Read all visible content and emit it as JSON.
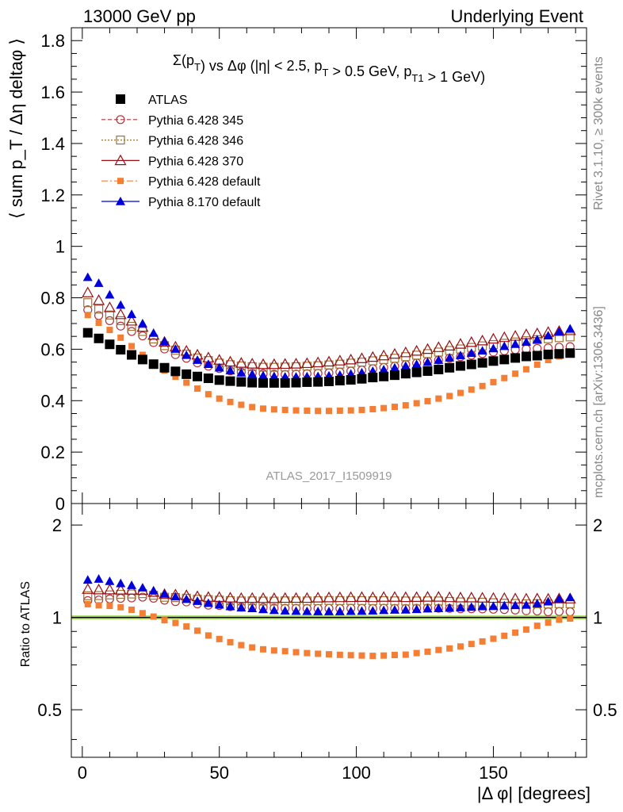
{
  "header": {
    "left": "13000 GeV pp",
    "right": "Underlying Event"
  },
  "side_labels": {
    "rivet": "Rivet 3.1.10, ≥ 300k events",
    "mcplots": "mcplots.cern.ch [arXiv:1306.3436]"
  },
  "colors": {
    "atlas": "#000000",
    "p345": "#b5303b",
    "p346": "#9b7437",
    "p370": "#9a0e15",
    "pdef": "#f57e35",
    "p8": "#0000dd",
    "band_stat": "#ffff66",
    "band_syst": "#aadd66"
  },
  "chart_data": [
    {
      "type": "scatter",
      "title": "Σ(p_T) vs Δφ (|η| < 2.5, p_T > 0.5 GeV, p_T1 > 1 GeV)",
      "ylabel": "⟨ sum p_T / Δη deltaφ ⟩",
      "xlabel": "",
      "ylim": [
        0,
        1.85
      ],
      "xlim": [
        -4,
        184
      ],
      "yticks": [
        0,
        0.2,
        0.4,
        0.6,
        0.8,
        1,
        1.2,
        1.4,
        1.6,
        1.8
      ],
      "yticklabels": [
        "0",
        "0.2",
        "0.4",
        "0.6",
        "0.8",
        "1",
        "1.2",
        "1.4",
        "1.6",
        "1.8"
      ],
      "legend_position": "top-left",
      "watermark": "ATLAS_2017_I1509919",
      "x": [
        2,
        6,
        10,
        14,
        18,
        22,
        26,
        30,
        34,
        38,
        42,
        46,
        50,
        54,
        58,
        62,
        66,
        70,
        74,
        78,
        82,
        86,
        90,
        94,
        98,
        102,
        106,
        110,
        114,
        118,
        122,
        126,
        130,
        134,
        138,
        142,
        146,
        150,
        154,
        158,
        162,
        166,
        170,
        174,
        178
      ],
      "series": [
        {
          "name": "ATLAS",
          "key": "atlas",
          "marker": "square",
          "line": "none",
          "values": [
            0.664,
            0.642,
            0.619,
            0.598,
            0.578,
            0.56,
            0.542,
            0.528,
            0.514,
            0.503,
            0.494,
            0.487,
            0.48,
            0.476,
            0.473,
            0.47,
            0.469,
            0.469,
            0.469,
            0.47,
            0.472,
            0.473,
            0.475,
            0.478,
            0.481,
            0.485,
            0.49,
            0.494,
            0.499,
            0.505,
            0.51,
            0.515,
            0.521,
            0.528,
            0.535,
            0.541,
            0.547,
            0.554,
            0.56,
            0.566,
            0.572,
            0.575,
            0.58,
            0.582,
            0.585
          ]
        },
        {
          "name": "Pythia 6.428 345",
          "key": "p345",
          "marker": "circle-open",
          "line": "dashed",
          "values": [
            0.753,
            0.731,
            0.711,
            0.69,
            0.669,
            0.652,
            0.626,
            0.601,
            0.579,
            0.565,
            0.547,
            0.534,
            0.525,
            0.516,
            0.511,
            0.507,
            0.505,
            0.503,
            0.502,
            0.503,
            0.505,
            0.506,
            0.508,
            0.511,
            0.515,
            0.519,
            0.524,
            0.529,
            0.534,
            0.54,
            0.546,
            0.552,
            0.558,
            0.565,
            0.571,
            0.577,
            0.583,
            0.589,
            0.594,
            0.598,
            0.601,
            0.603,
            0.605,
            0.608,
            0.61
          ]
        },
        {
          "name": "Pythia 6.428 346",
          "key": "p346",
          "marker": "square-open",
          "line": "dotted",
          "values": [
            0.781,
            0.756,
            0.733,
            0.711,
            0.689,
            0.669,
            0.64,
            0.614,
            0.596,
            0.581,
            0.566,
            0.556,
            0.546,
            0.54,
            0.535,
            0.532,
            0.53,
            0.53,
            0.531,
            0.532,
            0.534,
            0.536,
            0.539,
            0.542,
            0.546,
            0.55,
            0.555,
            0.56,
            0.565,
            0.571,
            0.577,
            0.583,
            0.589,
            0.595,
            0.601,
            0.607,
            0.613,
            0.618,
            0.623,
            0.628,
            0.633,
            0.637,
            0.641,
            0.645,
            0.648
          ]
        },
        {
          "name": "Pythia 6.428 370",
          "key": "p370",
          "marker": "triangle-open",
          "line": "solid",
          "values": [
            0.82,
            0.79,
            0.762,
            0.735,
            0.71,
            0.686,
            0.655,
            0.628,
            0.609,
            0.593,
            0.578,
            0.567,
            0.558,
            0.551,
            0.546,
            0.543,
            0.541,
            0.541,
            0.542,
            0.543,
            0.545,
            0.548,
            0.551,
            0.555,
            0.559,
            0.564,
            0.569,
            0.575,
            0.581,
            0.587,
            0.593,
            0.6,
            0.607,
            0.613,
            0.62,
            0.627,
            0.633,
            0.64,
            0.646,
            0.651,
            0.657,
            0.661,
            0.666,
            0.67,
            0.673
          ]
        },
        {
          "name": "Pythia 6.428 default",
          "key": "pdef",
          "marker": "square-small",
          "line": "dashdot",
          "values": [
            0.733,
            0.703,
            0.675,
            0.645,
            0.612,
            0.578,
            0.545,
            0.517,
            0.493,
            0.47,
            0.447,
            0.425,
            0.408,
            0.395,
            0.384,
            0.375,
            0.369,
            0.366,
            0.364,
            0.362,
            0.361,
            0.36,
            0.36,
            0.361,
            0.362,
            0.364,
            0.367,
            0.371,
            0.376,
            0.382,
            0.39,
            0.398,
            0.408,
            0.418,
            0.43,
            0.443,
            0.457,
            0.472,
            0.488,
            0.505,
            0.522,
            0.54,
            0.558,
            0.572,
            0.58
          ]
        },
        {
          "name": "Pythia 8.170 default",
          "key": "p8",
          "marker": "triangle",
          "line": "solid",
          "values": [
            0.88,
            0.857,
            0.812,
            0.772,
            0.736,
            0.7,
            0.663,
            0.63,
            0.601,
            0.577,
            0.558,
            0.542,
            0.528,
            0.517,
            0.509,
            0.503,
            0.498,
            0.495,
            0.493,
            0.493,
            0.494,
            0.495,
            0.497,
            0.5,
            0.504,
            0.509,
            0.515,
            0.521,
            0.528,
            0.535,
            0.542,
            0.55,
            0.558,
            0.567,
            0.576,
            0.585,
            0.594,
            0.603,
            0.612,
            0.62,
            0.628,
            0.638,
            0.653,
            0.668,
            0.68
          ]
        }
      ]
    },
    {
      "type": "scatter",
      "title": "",
      "ylabel": "Ratio to ATLAS",
      "xlabel": "|Δ φ| [degrees]",
      "ylim": [
        0.35,
        2.35
      ],
      "yscale": "log",
      "xlim": [
        -4,
        184
      ],
      "xticks": [
        0,
        50,
        100,
        150
      ],
      "xticklabels": [
        "0",
        "50",
        "100",
        "150"
      ],
      "yticks": [
        0.5,
        1,
        2
      ],
      "yticklabels": [
        "0.5",
        "1",
        "2"
      ],
      "reference_line": 1,
      "x": [
        2,
        6,
        10,
        14,
        18,
        22,
        26,
        30,
        34,
        38,
        42,
        46,
        50,
        54,
        58,
        62,
        66,
        70,
        74,
        78,
        82,
        86,
        90,
        94,
        98,
        102,
        106,
        110,
        114,
        118,
        122,
        126,
        130,
        134,
        138,
        142,
        146,
        150,
        154,
        158,
        162,
        166,
        170,
        174,
        178
      ],
      "series": [
        {
          "name": "Pythia 6.428 345",
          "key": "p345",
          "marker": "circle-open",
          "line": "dashed",
          "values": [
            1.134,
            1.139,
            1.149,
            1.154,
            1.157,
            1.164,
            1.155,
            1.138,
            1.126,
            1.123,
            1.107,
            1.096,
            1.094,
            1.084,
            1.08,
            1.079,
            1.077,
            1.072,
            1.071,
            1.071,
            1.07,
            1.07,
            1.07,
            1.069,
            1.071,
            1.07,
            1.069,
            1.071,
            1.07,
            1.069,
            1.071,
            1.072,
            1.071,
            1.07,
            1.067,
            1.067,
            1.066,
            1.063,
            1.061,
            1.057,
            1.051,
            1.049,
            1.043,
            1.045,
            1.043
          ]
        },
        {
          "name": "Pythia 6.428 346",
          "key": "p346",
          "marker": "square-open",
          "line": "dotted",
          "values": [
            1.176,
            1.178,
            1.184,
            1.189,
            1.192,
            1.195,
            1.181,
            1.163,
            1.16,
            1.155,
            1.146,
            1.142,
            1.138,
            1.134,
            1.131,
            1.132,
            1.13,
            1.13,
            1.132,
            1.132,
            1.131,
            1.133,
            1.135,
            1.134,
            1.135,
            1.134,
            1.133,
            1.134,
            1.132,
            1.131,
            1.131,
            1.132,
            1.131,
            1.127,
            1.123,
            1.122,
            1.121,
            1.116,
            1.112,
            1.11,
            1.107,
            1.108,
            1.105,
            1.108,
            1.108
          ]
        },
        {
          "name": "Pythia 6.428 370",
          "key": "p370",
          "marker": "triangle-open",
          "line": "solid",
          "values": [
            1.235,
            1.231,
            1.231,
            1.229,
            1.228,
            1.225,
            1.208,
            1.189,
            1.185,
            1.179,
            1.17,
            1.164,
            1.163,
            1.158,
            1.154,
            1.155,
            1.154,
            1.153,
            1.155,
            1.155,
            1.155,
            1.158,
            1.16,
            1.161,
            1.162,
            1.163,
            1.161,
            1.164,
            1.164,
            1.162,
            1.163,
            1.165,
            1.165,
            1.161,
            1.159,
            1.159,
            1.157,
            1.155,
            1.154,
            1.15,
            1.149,
            1.15,
            1.148,
            1.151,
            1.15
          ]
        },
        {
          "name": "Pythia 6.428 default",
          "key": "pdef",
          "marker": "square-small",
          "line": "dashdot",
          "values": [
            1.104,
            1.095,
            1.09,
            1.079,
            1.059,
            1.032,
            1.006,
            0.979,
            0.959,
            0.934,
            0.905,
            0.873,
            0.85,
            0.83,
            0.812,
            0.798,
            0.787,
            0.78,
            0.776,
            0.77,
            0.765,
            0.761,
            0.758,
            0.755,
            0.753,
            0.751,
            0.749,
            0.751,
            0.754,
            0.756,
            0.765,
            0.773,
            0.783,
            0.792,
            0.804,
            0.819,
            0.835,
            0.852,
            0.871,
            0.892,
            0.913,
            0.939,
            0.962,
            0.983,
            0.991
          ]
        },
        {
          "name": "Pythia 8.170 default",
          "key": "p8",
          "marker": "triangle",
          "line": "solid",
          "values": [
            1.325,
            1.335,
            1.312,
            1.291,
            1.273,
            1.25,
            1.223,
            1.193,
            1.169,
            1.147,
            1.13,
            1.113,
            1.1,
            1.086,
            1.076,
            1.07,
            1.062,
            1.055,
            1.051,
            1.049,
            1.047,
            1.046,
            1.046,
            1.046,
            1.048,
            1.049,
            1.051,
            1.055,
            1.058,
            1.059,
            1.063,
            1.068,
            1.071,
            1.074,
            1.077,
            1.081,
            1.086,
            1.088,
            1.093,
            1.095,
            1.098,
            1.11,
            1.126,
            1.148,
            1.162
          ]
        }
      ]
    }
  ]
}
